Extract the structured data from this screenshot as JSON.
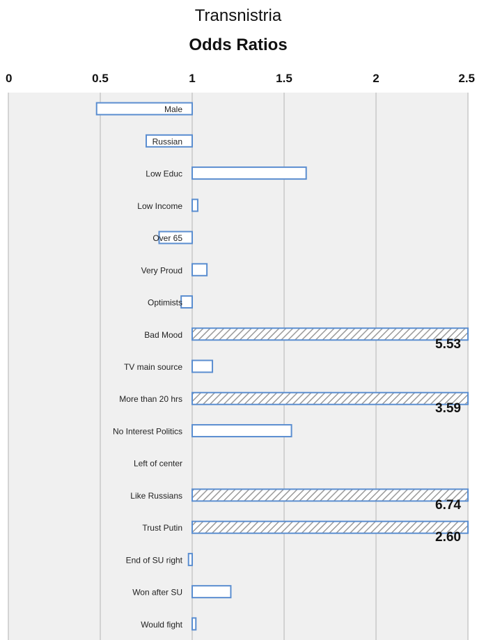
{
  "chart_data": {
    "type": "bar",
    "orientation": "horizontal",
    "title": "Transnistria",
    "subtitle": "Odds Ratios",
    "xlim": [
      0,
      2.5
    ],
    "x_ticks": [
      "0",
      "0.5",
      "1",
      "1.5",
      "2",
      "2.5"
    ],
    "x_tick_values": [
      0,
      0.5,
      1,
      1.5,
      2,
      2.5
    ],
    "baseline": 1,
    "grid": true,
    "colors": {
      "bar_outline": "#5b8ed0",
      "hatched_outline": "#5b8ed0",
      "hatch_stripe": "#9a9a9a",
      "plot_bg": "#f0f0f0",
      "grid": "#c8c8c8"
    },
    "categories": [
      "Male",
      "Russian",
      "Low Educ",
      "Low Income",
      "Over 65",
      "Very Proud",
      "Optimists",
      "Bad Mood",
      "TV main source",
      "More than 20 hrs",
      "No Interest Politics",
      "Left of center",
      "Like Russians",
      "Trust Putin",
      "End of SU right",
      "Won after SU",
      "Would fight"
    ],
    "values": [
      0.48,
      0.75,
      1.62,
      1.03,
      0.82,
      1.08,
      0.94,
      5.53,
      1.11,
      3.59,
      1.54,
      1.0,
      6.74,
      2.6,
      0.98,
      1.21,
      1.02
    ],
    "data_labels": [
      "",
      "",
      "",
      "",
      "",
      "",
      "",
      "5.53",
      "",
      "3.59",
      "",
      "",
      "6.74",
      "2.60",
      "",
      "",
      ""
    ],
    "hatched": [
      false,
      false,
      false,
      false,
      false,
      false,
      false,
      true,
      false,
      true,
      false,
      false,
      true,
      true,
      false,
      false,
      false
    ]
  }
}
